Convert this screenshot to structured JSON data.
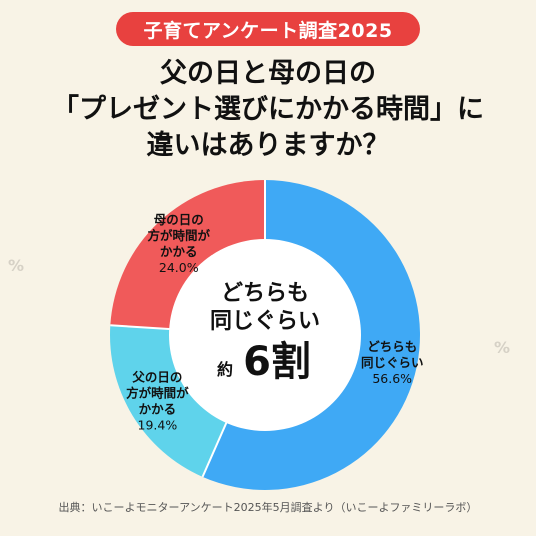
{
  "badge": "子育てアンケート調査2025",
  "title": {
    "line1": "父の日と母の日の",
    "line2": "「プレゼント選びにかかる時間」に",
    "line3": "違いはありますか？"
  },
  "center": {
    "line1": "どちらも",
    "line2": "同じぐらい",
    "prefix": "約",
    "big": "6割"
  },
  "footer": "出典：いこーよモニターアンケート2025年5月調査より（いこーよファミリーラボ）",
  "colors": {
    "background": "#f8f3e6",
    "badge": "#e8413f",
    "same": "#3fa9f5",
    "mother": "#f05a5a",
    "father": "#5fd3eb"
  },
  "chart_data": {
    "type": "pie",
    "donut": true,
    "labels": [
      [
        "どちらも",
        "同じぐらい"
      ],
      [
        "父の日の",
        "方が時間が",
        "かかる"
      ],
      [
        "母の日の",
        "方が時間が",
        "かかる"
      ]
    ],
    "values": [
      56.6,
      19.4,
      24.0
    ],
    "value_labels": [
      "56.6%",
      "19.4%",
      "24.0%"
    ],
    "start": "top, clockwise"
  }
}
